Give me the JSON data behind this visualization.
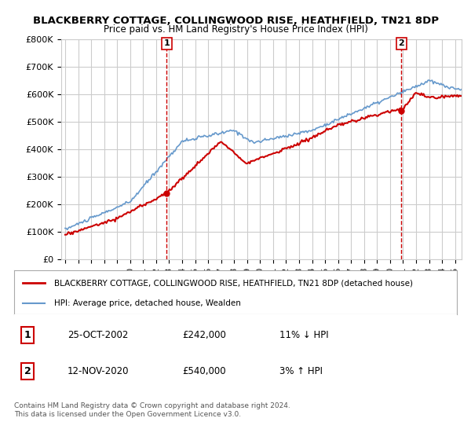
{
  "title": "BLACKBERRY COTTAGE, COLLINGWOOD RISE, HEATHFIELD, TN21 8DP",
  "subtitle": "Price paid vs. HM Land Registry's House Price Index (HPI)",
  "legend_line1": "BLACKBERRY COTTAGE, COLLINGWOOD RISE, HEATHFIELD, TN21 8DP (detached house)",
  "legend_line2": "HPI: Average price, detached house, Wealden",
  "sale1_date": "25-OCT-2002",
  "sale1_price": "£242,000",
  "sale1_hpi": "11% ↓ HPI",
  "sale1_year": 2002.82,
  "sale1_value": 242000,
  "sale2_date": "12-NOV-2020",
  "sale2_price": "£540,000",
  "sale2_hpi": "3% ↑ HPI",
  "sale2_year": 2020.87,
  "sale2_value": 540000,
  "footer": "Contains HM Land Registry data © Crown copyright and database right 2024.\nThis data is licensed under the Open Government Licence v3.0.",
  "red_color": "#cc0000",
  "blue_color": "#6699cc",
  "dashed_color": "#cc0000",
  "background_color": "#ffffff",
  "grid_color": "#cccccc",
  "ylim": [
    0,
    800000
  ],
  "xlim_start": 1995,
  "xlim_end": 2025.5
}
